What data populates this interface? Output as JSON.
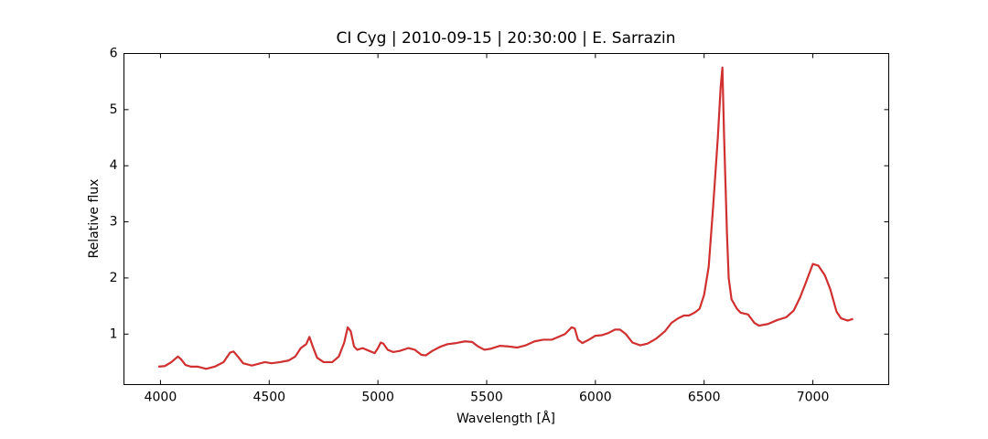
{
  "chart_data": {
    "type": "line",
    "title": "CI Cyg | 2010-09-15 | 20:30:00 | E. Sarrazin",
    "x_label": "Wavelength [Å]",
    "y_label": "Relative flux",
    "color": "#d03030",
    "xlim": [
      3832,
      7349
    ],
    "ylim": [
      0.1,
      6
    ],
    "xticks": [
      4000,
      4500,
      5000,
      5500,
      6000,
      6500,
      7000
    ],
    "yticks": [
      1,
      2,
      3,
      4,
      5,
      6
    ],
    "x": [
      3990,
      4020,
      4050,
      4080,
      4095,
      4115,
      4140,
      4170,
      4210,
      4250,
      4290,
      4320,
      4336,
      4360,
      4380,
      4420,
      4450,
      4480,
      4510,
      4550,
      4590,
      4620,
      4645,
      4670,
      4685,
      4700,
      4720,
      4750,
      4790,
      4820,
      4845,
      4861,
      4875,
      4890,
      4905,
      4930,
      4960,
      4985,
      5000,
      5013,
      5025,
      5045,
      5070,
      5100,
      5140,
      5170,
      5200,
      5220,
      5250,
      5290,
      5320,
      5360,
      5400,
      5433,
      5460,
      5490,
      5520,
      5560,
      5600,
      5640,
      5680,
      5720,
      5760,
      5800,
      5830,
      5860,
      5891,
      5905,
      5920,
      5940,
      5970,
      6000,
      6030,
      6060,
      6090,
      6113,
      6140,
      6170,
      6206,
      6240,
      6280,
      6320,
      6350,
      6380,
      6407,
      6430,
      6455,
      6479,
      6500,
      6521,
      6542,
      6563,
      6576,
      6584,
      6592,
      6605,
      6613,
      6626,
      6651,
      6668,
      6702,
      6731,
      6752,
      6794,
      6836,
      6878,
      6912,
      6941,
      6971,
      7000,
      7025,
      7055,
      7080,
      7109,
      7130,
      7160,
      7185
    ],
    "values": [
      0.42,
      0.43,
      0.5,
      0.6,
      0.55,
      0.45,
      0.42,
      0.42,
      0.38,
      0.42,
      0.5,
      0.67,
      0.69,
      0.58,
      0.48,
      0.44,
      0.47,
      0.5,
      0.48,
      0.5,
      0.53,
      0.6,
      0.75,
      0.82,
      0.95,
      0.78,
      0.58,
      0.5,
      0.5,
      0.6,
      0.85,
      1.12,
      1.05,
      0.78,
      0.72,
      0.75,
      0.7,
      0.66,
      0.75,
      0.85,
      0.83,
      0.72,
      0.68,
      0.7,
      0.75,
      0.72,
      0.63,
      0.62,
      0.7,
      0.78,
      0.82,
      0.84,
      0.87,
      0.86,
      0.78,
      0.72,
      0.74,
      0.79,
      0.78,
      0.76,
      0.8,
      0.87,
      0.9,
      0.9,
      0.95,
      1.0,
      1.12,
      1.1,
      0.9,
      0.84,
      0.9,
      0.97,
      0.98,
      1.02,
      1.08,
      1.08,
      1.0,
      0.85,
      0.8,
      0.83,
      0.92,
      1.05,
      1.2,
      1.28,
      1.33,
      1.33,
      1.38,
      1.45,
      1.7,
      2.2,
      3.3,
      4.5,
      5.4,
      5.75,
      4.5,
      2.8,
      2.0,
      1.62,
      1.45,
      1.38,
      1.35,
      1.2,
      1.15,
      1.18,
      1.25,
      1.3,
      1.42,
      1.65,
      1.95,
      2.25,
      2.22,
      2.05,
      1.8,
      1.4,
      1.28,
      1.24,
      1.27
    ]
  }
}
